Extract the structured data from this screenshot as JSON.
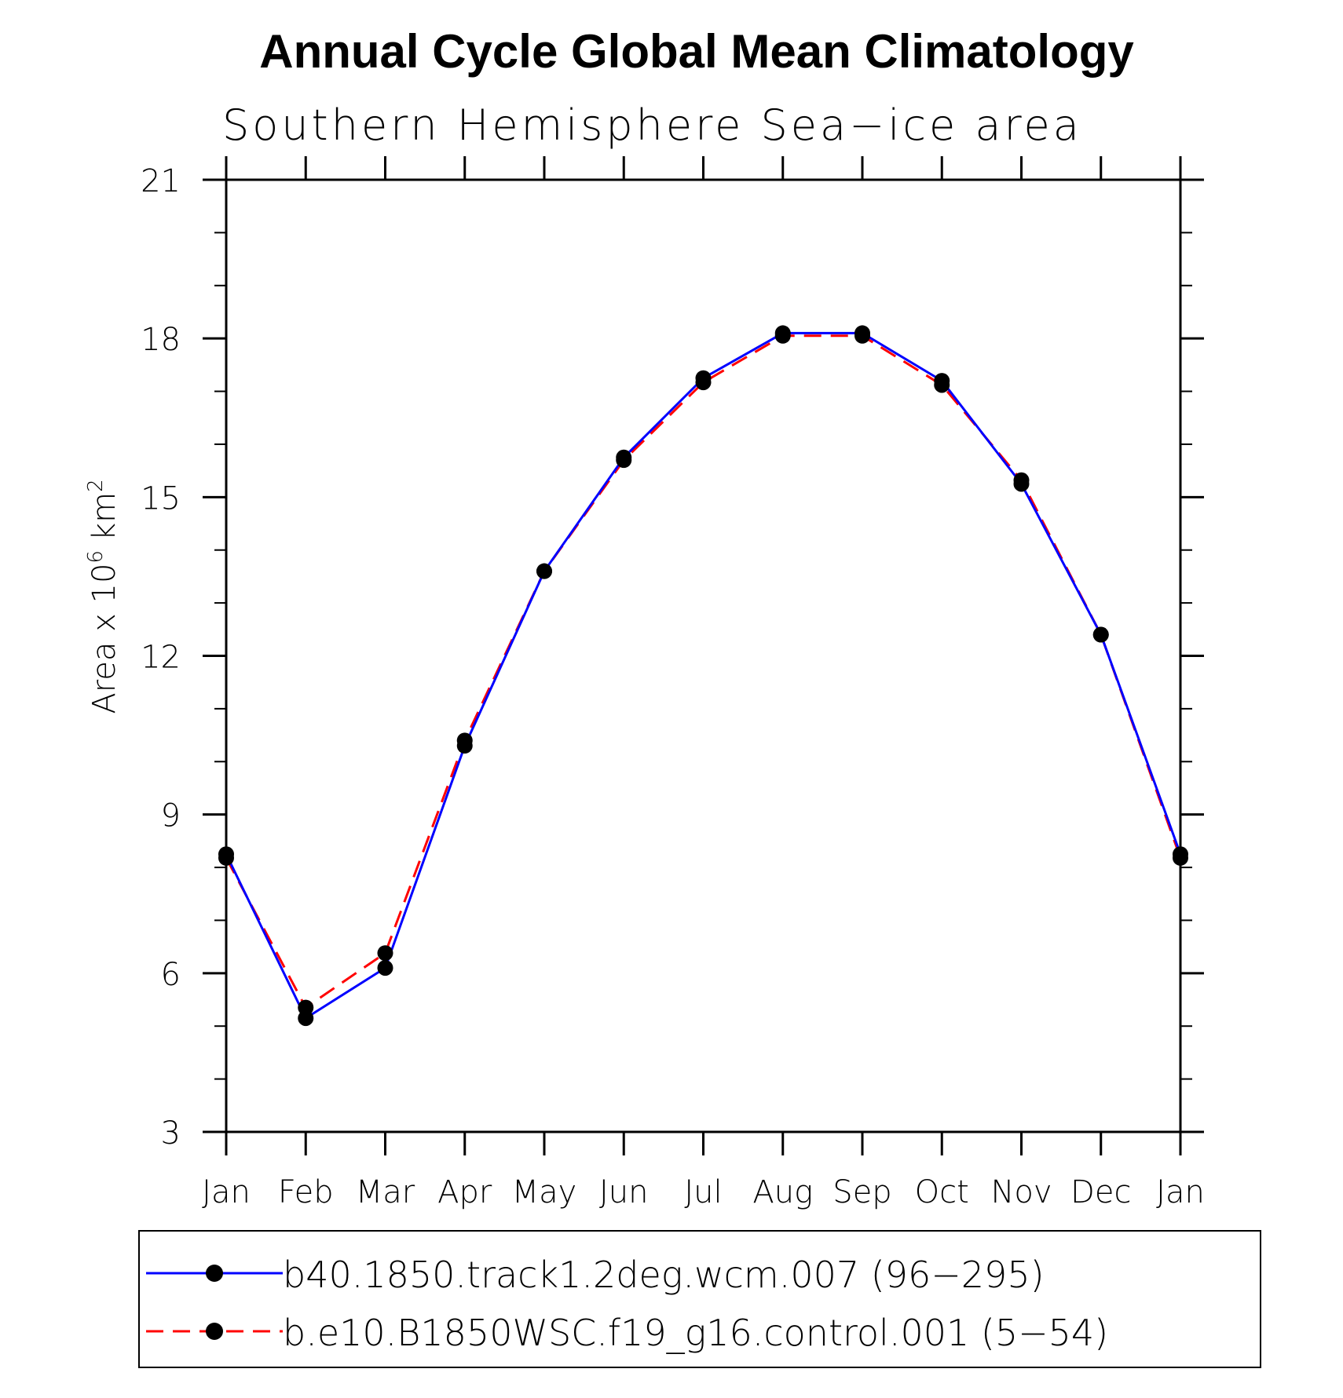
{
  "chart_data": {
    "type": "line",
    "title": "Annual Cycle Global Mean Climatology",
    "subtitle": "Southern Hemisphere Sea−ice area",
    "ylabel": {
      "prefix": "Area x 10",
      "exponent": "6",
      "unit": "km",
      "unit_exponent": "2"
    },
    "xlabel": "",
    "categories": [
      "Jan",
      "Feb",
      "Mar",
      "Apr",
      "May",
      "Jun",
      "Jul",
      "Aug",
      "Sep",
      "Oct",
      "Nov",
      "Dec",
      "Jan"
    ],
    "ylim": [
      3,
      21
    ],
    "yticks": [
      3,
      6,
      9,
      12,
      15,
      18,
      21
    ],
    "yticks_minor": [
      4,
      5,
      7,
      8,
      10,
      11,
      13,
      14,
      16,
      17,
      19,
      20
    ],
    "grid": false,
    "legend_position": "bottom",
    "series": [
      {
        "name": "b40.1850.track1.2deg.wcm.007 (96−295)",
        "color": "#0000ff",
        "line_style": "solid",
        "marker": "filled-circle",
        "values": [
          8.25,
          5.15,
          6.1,
          10.3,
          13.6,
          15.75,
          17.25,
          18.1,
          18.1,
          17.2,
          15.25,
          12.4,
          8.25
        ]
      },
      {
        "name": "b.e10.B1850WSC.f19_g16.control.001 (5−54)",
        "color": "#ff0000",
        "line_style": "dashed",
        "marker": "filled-circle",
        "values": [
          8.18,
          5.35,
          6.38,
          10.4,
          13.6,
          15.7,
          17.17,
          18.05,
          18.05,
          17.12,
          15.32,
          12.4,
          8.18
        ]
      }
    ]
  }
}
